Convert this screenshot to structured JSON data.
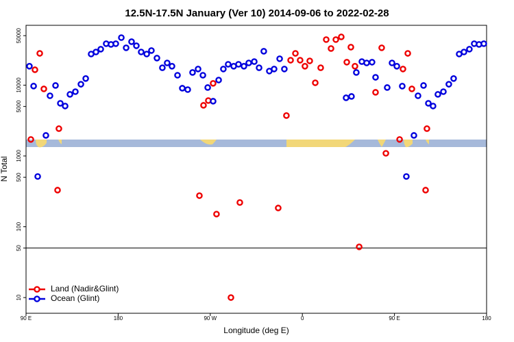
{
  "chart_data": {
    "type": "scatter",
    "title": "12.5N-17.5N January (Ver 10)   2014-09-06 to 2022-02-28",
    "x_label": "Longitude (deg E)",
    "y_label": "N Total",
    "xlim": [
      90,
      540
    ],
    "ylim": [
      6,
      70000
    ],
    "ylog": true,
    "xticks": [
      {
        "value": 90,
        "label": "90 E"
      },
      {
        "value": 180,
        "label": "180"
      },
      {
        "value": 270,
        "label": "90 W"
      },
      {
        "value": 360,
        "label": "0"
      },
      {
        "value": 450,
        "label": "90 E"
      },
      {
        "value": 540,
        "label": "180"
      }
    ],
    "yticks": [
      10,
      50,
      100,
      500,
      1000,
      5000,
      10000,
      50000
    ],
    "reference_line": 50,
    "legend": "bottom-left",
    "series": [
      {
        "name": "Land (Nadir&Glint)",
        "color": "#ee0000",
        "x": [
          94.7,
          98.7,
          103.4,
          107.4,
          120.8,
          122.1,
          259.4,
          263.4,
          268.1,
          272.8,
          276.1,
          290.2,
          298.9,
          336.4,
          344.4,
          348.5,
          353.2,
          357.8,
          362.5,
          367.2,
          372.6,
          377.9,
          383.3,
          388.0,
          392.7,
          398.0,
          403.4,
          407.4,
          411.4,
          415.5,
          431.5,
          437.5,
          441.6,
          455.0,
          458.3,
          463.0,
          467.0,
          480.4,
          481.7
        ],
        "values": [
          1710,
          16500,
          28100,
          8850,
          329,
          2430,
          275,
          5190,
          6060,
          10600,
          151,
          10,
          220,
          184,
          3720,
          22500,
          28100,
          22500,
          18500,
          22000,
          10800,
          17600,
          44000,
          32900,
          44000,
          48000,
          21100,
          34400,
          18500,
          52,
          7920,
          33700,
          1090,
          1710,
          16900,
          28100,
          8850,
          329,
          2430
        ]
      },
      {
        "name": "Ocean (Glint)",
        "color": "#0000dd",
        "x": [
          93.3,
          97.4,
          101.4,
          109.4,
          113.4,
          118.8,
          123.5,
          128.2,
          132.9,
          138.2,
          143.6,
          148.3,
          153.6,
          158.3,
          163.0,
          168.3,
          173.0,
          177.7,
          183.1,
          187.8,
          193.1,
          197.8,
          202.5,
          207.9,
          212.5,
          217.9,
          223.2,
          227.9,
          232.6,
          238.0,
          242.7,
          248.0,
          252.7,
          258.1,
          262.8,
          267.5,
          272.8,
          278.2,
          282.8,
          287.5,
          292.9,
          297.6,
          302.9,
          307.6,
          313.0,
          317.7,
          322.3,
          327.7,
          332.4,
          337.8,
          342.4,
          402.7,
          408.0,
          412.7,
          418.1,
          422.8,
          428.1,
          431.5,
          442.9,
          447.6,
          452.3,
          457.6,
          461.6,
          469.0,
          473.0,
          478.4,
          483.1,
          487.7,
          492.4,
          497.8,
          503.1,
          507.8,
          513.2,
          517.9,
          523.2,
          527.9,
          532.6,
          537.3
        ],
        "values": [
          18500,
          9700,
          513,
          1950,
          7080,
          9890,
          5540,
          5070,
          7410,
          8090,
          10300,
          12400,
          27500,
          29400,
          32200,
          38500,
          37600,
          38500,
          46900,
          33700,
          41100,
          36000,
          29400,
          27500,
          30800,
          24100,
          17600,
          20600,
          18500,
          13800,
          9050,
          8650,
          15100,
          16900,
          13800,
          9250,
          5930,
          11800,
          16900,
          19700,
          18500,
          19700,
          18500,
          20600,
          21500,
          17600,
          30100,
          15800,
          16900,
          23600,
          16900,
          6630,
          6930,
          15100,
          21500,
          20600,
          21100,
          12900,
          9250,
          20600,
          18500,
          9680,
          513,
          1950,
          7080,
          9890,
          5540,
          5070,
          7410,
          8090,
          10300,
          12400,
          27500,
          29400,
          32200,
          38500,
          37600,
          38500
        ]
      }
    ]
  }
}
